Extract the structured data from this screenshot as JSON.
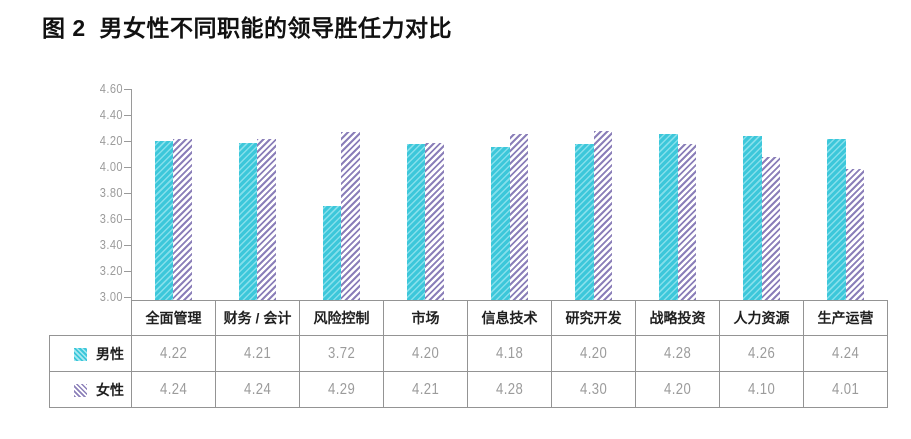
{
  "title": "图 2  男女性不同职能的领导胜任力对比",
  "chart_data": {
    "type": "bar",
    "title": "图 2  男女性不同职能的领导胜任力对比",
    "categories": [
      "全面管理",
      "财务 / 会计",
      "风险控制",
      "市场",
      "信息技术",
      "研究开发",
      "战略投资",
      "人力资源",
      "生产运营"
    ],
    "series": [
      {
        "name": "男性",
        "values": [
          4.22,
          4.21,
          3.72,
          4.2,
          4.18,
          4.2,
          4.28,
          4.26,
          4.24
        ]
      },
      {
        "name": "女性",
        "values": [
          4.24,
          4.24,
          4.29,
          4.21,
          4.28,
          4.3,
          4.2,
          4.1,
          4.01
        ]
      }
    ],
    "xlabel": "",
    "ylabel": "",
    "ylim": [
      3.0,
      4.6
    ],
    "ytick_labels": [
      "4.60",
      "4.40",
      "4.20",
      "4.00",
      "3.80",
      "3.60",
      "3.40",
      "3.20",
      "3.00"
    ],
    "grid": false,
    "legend_position": "left column of data table below chart",
    "value_format": "0.00"
  },
  "colors": {
    "male_bar_base": "#3cc7da",
    "male_bar_stripe": "#85dfeb",
    "female_bar_stripe": "#8b7fb9",
    "female_bar_base": "#ffffff",
    "axis": "#9a9a9a",
    "table_border": "#949494",
    "tick_label_text": "#9b9b9b",
    "value_text": "#9b9b9b",
    "header_text": "#1f1f1f",
    "title_text": "#111111",
    "background": "#ffffff"
  },
  "icons": {
    "male_swatch": "male-hatch-swatch-icon",
    "female_swatch": "female-hatch-swatch-icon"
  }
}
